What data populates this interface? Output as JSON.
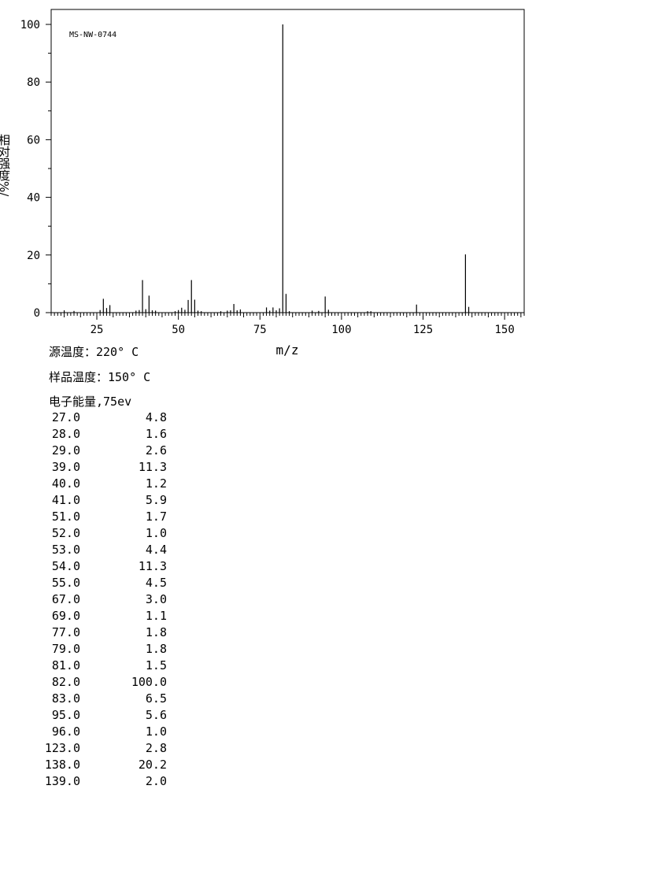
{
  "chart_data": {
    "type": "bar",
    "code": "MS-NW-0744",
    "ylabel": "相对强度%/",
    "xlabel": "m/z",
    "xlim": [
      11,
      156
    ],
    "ylim": [
      0,
      100
    ],
    "xticks": [
      25,
      50,
      75,
      100,
      125,
      150
    ],
    "yticks": [
      0,
      20,
      40,
      60,
      80,
      100
    ],
    "x_minor_step": 1,
    "y_minor_step": 10,
    "grid": false,
    "legend": "none",
    "peaks": [
      {
        "x": 15,
        "y": 0.8
      },
      {
        "x": 18,
        "y": 0.6
      },
      {
        "x": 26,
        "y": 0.9
      },
      {
        "x": 27,
        "y": 4.8
      },
      {
        "x": 28,
        "y": 1.6
      },
      {
        "x": 29,
        "y": 2.6
      },
      {
        "x": 37,
        "y": 0.7
      },
      {
        "x": 38,
        "y": 0.9
      },
      {
        "x": 39,
        "y": 11.3
      },
      {
        "x": 40,
        "y": 1.2
      },
      {
        "x": 41,
        "y": 5.9
      },
      {
        "x": 42,
        "y": 0.8
      },
      {
        "x": 43,
        "y": 0.7
      },
      {
        "x": 49,
        "y": 0.5
      },
      {
        "x": 50,
        "y": 0.9
      },
      {
        "x": 51,
        "y": 1.7
      },
      {
        "x": 52,
        "y": 1.0
      },
      {
        "x": 53,
        "y": 4.4
      },
      {
        "x": 54,
        "y": 11.3
      },
      {
        "x": 55,
        "y": 4.5
      },
      {
        "x": 56,
        "y": 0.7
      },
      {
        "x": 57,
        "y": 0.5
      },
      {
        "x": 63,
        "y": 0.5
      },
      {
        "x": 65,
        "y": 0.7
      },
      {
        "x": 66,
        "y": 0.8
      },
      {
        "x": 67,
        "y": 3.0
      },
      {
        "x": 68,
        "y": 0.8
      },
      {
        "x": 69,
        "y": 1.1
      },
      {
        "x": 77,
        "y": 1.8
      },
      {
        "x": 78,
        "y": 0.7
      },
      {
        "x": 79,
        "y": 1.8
      },
      {
        "x": 80,
        "y": 0.8
      },
      {
        "x": 81,
        "y": 1.5
      },
      {
        "x": 82,
        "y": 100.0
      },
      {
        "x": 83,
        "y": 6.5
      },
      {
        "x": 84,
        "y": 0.5
      },
      {
        "x": 91,
        "y": 0.7
      },
      {
        "x": 93,
        "y": 0.6
      },
      {
        "x": 95,
        "y": 5.6
      },
      {
        "x": 96,
        "y": 1.0
      },
      {
        "x": 108,
        "y": 0.5
      },
      {
        "x": 109,
        "y": 0.5
      },
      {
        "x": 123,
        "y": 2.8
      },
      {
        "x": 138,
        "y": 20.2
      },
      {
        "x": 139,
        "y": 2.0
      }
    ]
  },
  "conditions": {
    "source_temp": "源温度：220° C",
    "sample_temp": "样品温度：150° C",
    "electron_energy": "电子能量,75ev"
  },
  "peak_table": [
    {
      "mz": "27.0",
      "intensity": "4.8"
    },
    {
      "mz": "28.0",
      "intensity": "1.6"
    },
    {
      "mz": "29.0",
      "intensity": "2.6"
    },
    {
      "mz": "39.0",
      "intensity": "11.3"
    },
    {
      "mz": "40.0",
      "intensity": "1.2"
    },
    {
      "mz": "41.0",
      "intensity": "5.9"
    },
    {
      "mz": "51.0",
      "intensity": "1.7"
    },
    {
      "mz": "52.0",
      "intensity": "1.0"
    },
    {
      "mz": "53.0",
      "intensity": "4.4"
    },
    {
      "mz": "54.0",
      "intensity": "11.3"
    },
    {
      "mz": "55.0",
      "intensity": "4.5"
    },
    {
      "mz": "67.0",
      "intensity": "3.0"
    },
    {
      "mz": "69.0",
      "intensity": "1.1"
    },
    {
      "mz": "77.0",
      "intensity": "1.8"
    },
    {
      "mz": "79.0",
      "intensity": "1.8"
    },
    {
      "mz": "81.0",
      "intensity": "1.5"
    },
    {
      "mz": "82.0",
      "intensity": "100.0"
    },
    {
      "mz": "83.0",
      "intensity": "6.5"
    },
    {
      "mz": "95.0",
      "intensity": "5.6"
    },
    {
      "mz": "96.0",
      "intensity": "1.0"
    },
    {
      "mz": "123.0",
      "intensity": "2.8"
    },
    {
      "mz": "138.0",
      "intensity": "20.2"
    },
    {
      "mz": "139.0",
      "intensity": "2.0"
    }
  ]
}
